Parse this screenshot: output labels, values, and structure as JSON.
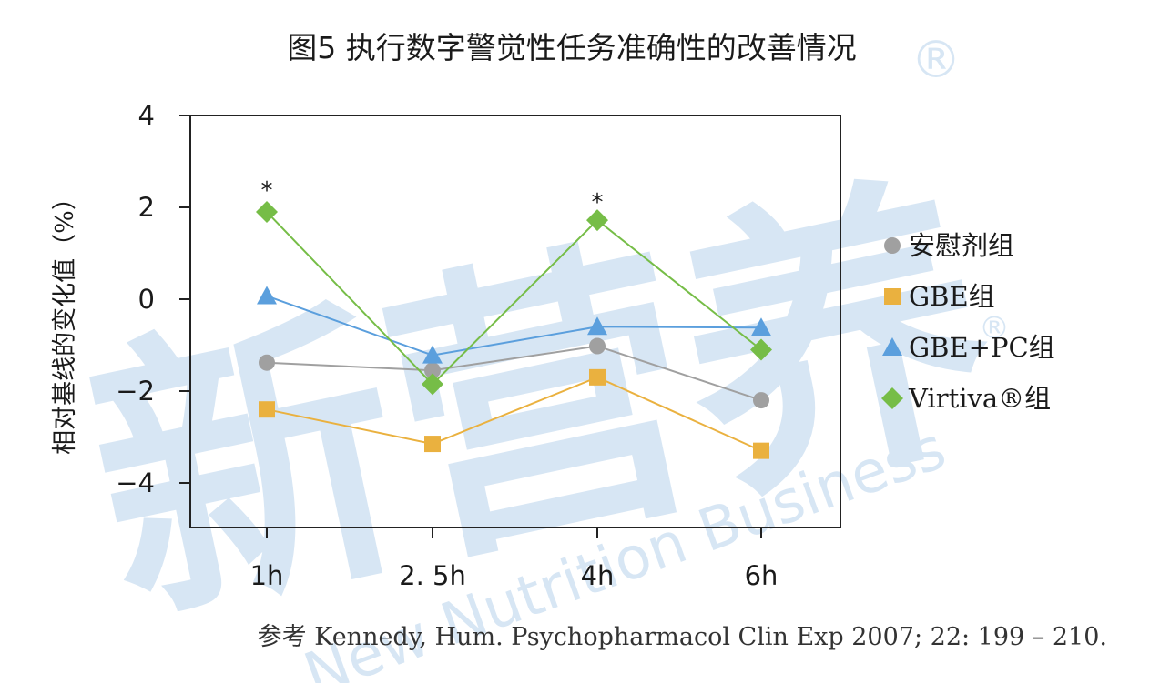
{
  "chart_data": {
    "type": "line",
    "title": "图5 执行数字警觉性任务准确性的改善情况",
    "ylabel": "相对基线的变化值（%）",
    "xlabel": "",
    "categories": [
      "1h",
      "2. 5h",
      "4h",
      "6h"
    ],
    "ylim": [
      -5,
      4
    ],
    "yticks": [
      4,
      2,
      0,
      -2,
      -4
    ],
    "ytick_labels": [
      "4",
      "2",
      "0",
      "−2",
      "−4"
    ],
    "grid": false,
    "legend_position": "right",
    "series": [
      {
        "name": "安慰剂组",
        "marker": "circle",
        "color": "#a0a0a0",
        "values": [
          -1.38,
          -1.55,
          -1.02,
          -2.2
        ]
      },
      {
        "name": "GBE组",
        "marker": "square",
        "color": "#eab13f",
        "values": [
          -2.4,
          -3.15,
          -1.7,
          -3.3
        ]
      },
      {
        "name": "GBE+PC组",
        "marker": "triangle",
        "color": "#5b9fdd",
        "values": [
          0.07,
          -1.22,
          -0.6,
          -0.62
        ]
      },
      {
        "name": "Virtiva®组",
        "marker": "diamond",
        "color": "#76bd47",
        "values": [
          1.9,
          -1.85,
          1.72,
          -1.1
        ]
      }
    ],
    "annotations": [
      {
        "text": "*",
        "category": "1h",
        "y": 2.55
      },
      {
        "text": "*",
        "category": "4h",
        "y": 2.3
      }
    ]
  },
  "watermark": {
    "logo_text": "新营养",
    "brand_text": "New Nutrition Business",
    "registered_mark": "®",
    "color": "#d7e6f4"
  },
  "reference_note": "参考 Kennedy, Hum. Psychopharmacol Clin Exp 2007; 22: 199 – 210."
}
